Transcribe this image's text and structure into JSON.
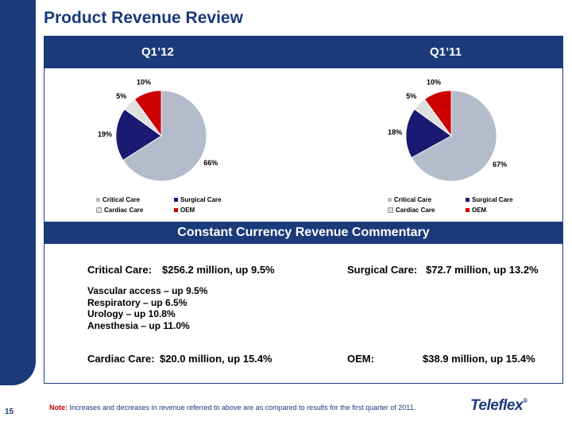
{
  "title": "Product Revenue Review",
  "page_number": "15",
  "colors": {
    "navy": "#1a3a7a",
    "critical_care": "#b4bccc",
    "surgical_care": "#1a1a72",
    "cardiac_care": "#e0e0e0",
    "oem": "#cc0000"
  },
  "periods": [
    "Q1’12",
    "Q1’11"
  ],
  "chart_data": [
    {
      "type": "pie",
      "title": "Q1’12",
      "categories": [
        "Critical Care",
        "Surgical Care",
        "Cardiac Care",
        "OEM"
      ],
      "values": [
        66,
        19,
        5,
        10
      ],
      "labels": [
        "66%",
        "19%",
        "5%",
        "10%"
      ],
      "legend": "bottom"
    },
    {
      "type": "pie",
      "title": "Q1’11",
      "categories": [
        "Critical Care",
        "Surgical Care",
        "Cardiac Care",
        "OEM"
      ],
      "values": [
        67,
        18,
        5,
        10
      ],
      "labels": [
        "67%",
        "18%",
        "5%",
        "10%"
      ],
      "legend": "bottom"
    }
  ],
  "legend_labels": [
    "Critical Care",
    "Surgical Care",
    "Cardiac Care",
    "OEM"
  ],
  "commentary_header": "Constant Currency Revenue Commentary",
  "commentary": {
    "critical_label": "Critical Care:",
    "critical_value": "$256.2 million, up 9.5%",
    "surgical_label": "Surgical Care:",
    "surgical_value": "$72.7 million, up 13.2%",
    "critical_details": [
      "Vascular access – up 9.5%",
      "Respiratory – up 6.5%",
      "Urology – up 10.8%",
      "Anesthesia – up 11.0%"
    ],
    "cardiac_label": "Cardiac Care:",
    "cardiac_value": "$20.0 million, up 15.4%",
    "oem_label": "OEM:",
    "oem_value": "$38.9 million, up 15.4%"
  },
  "note": {
    "label": "Note:",
    "text": "Increases and decreases in revenue referred to above are as compared to results for the first quarter of 2011."
  },
  "logo": {
    "text": "Teleflex",
    "mark": "®"
  }
}
